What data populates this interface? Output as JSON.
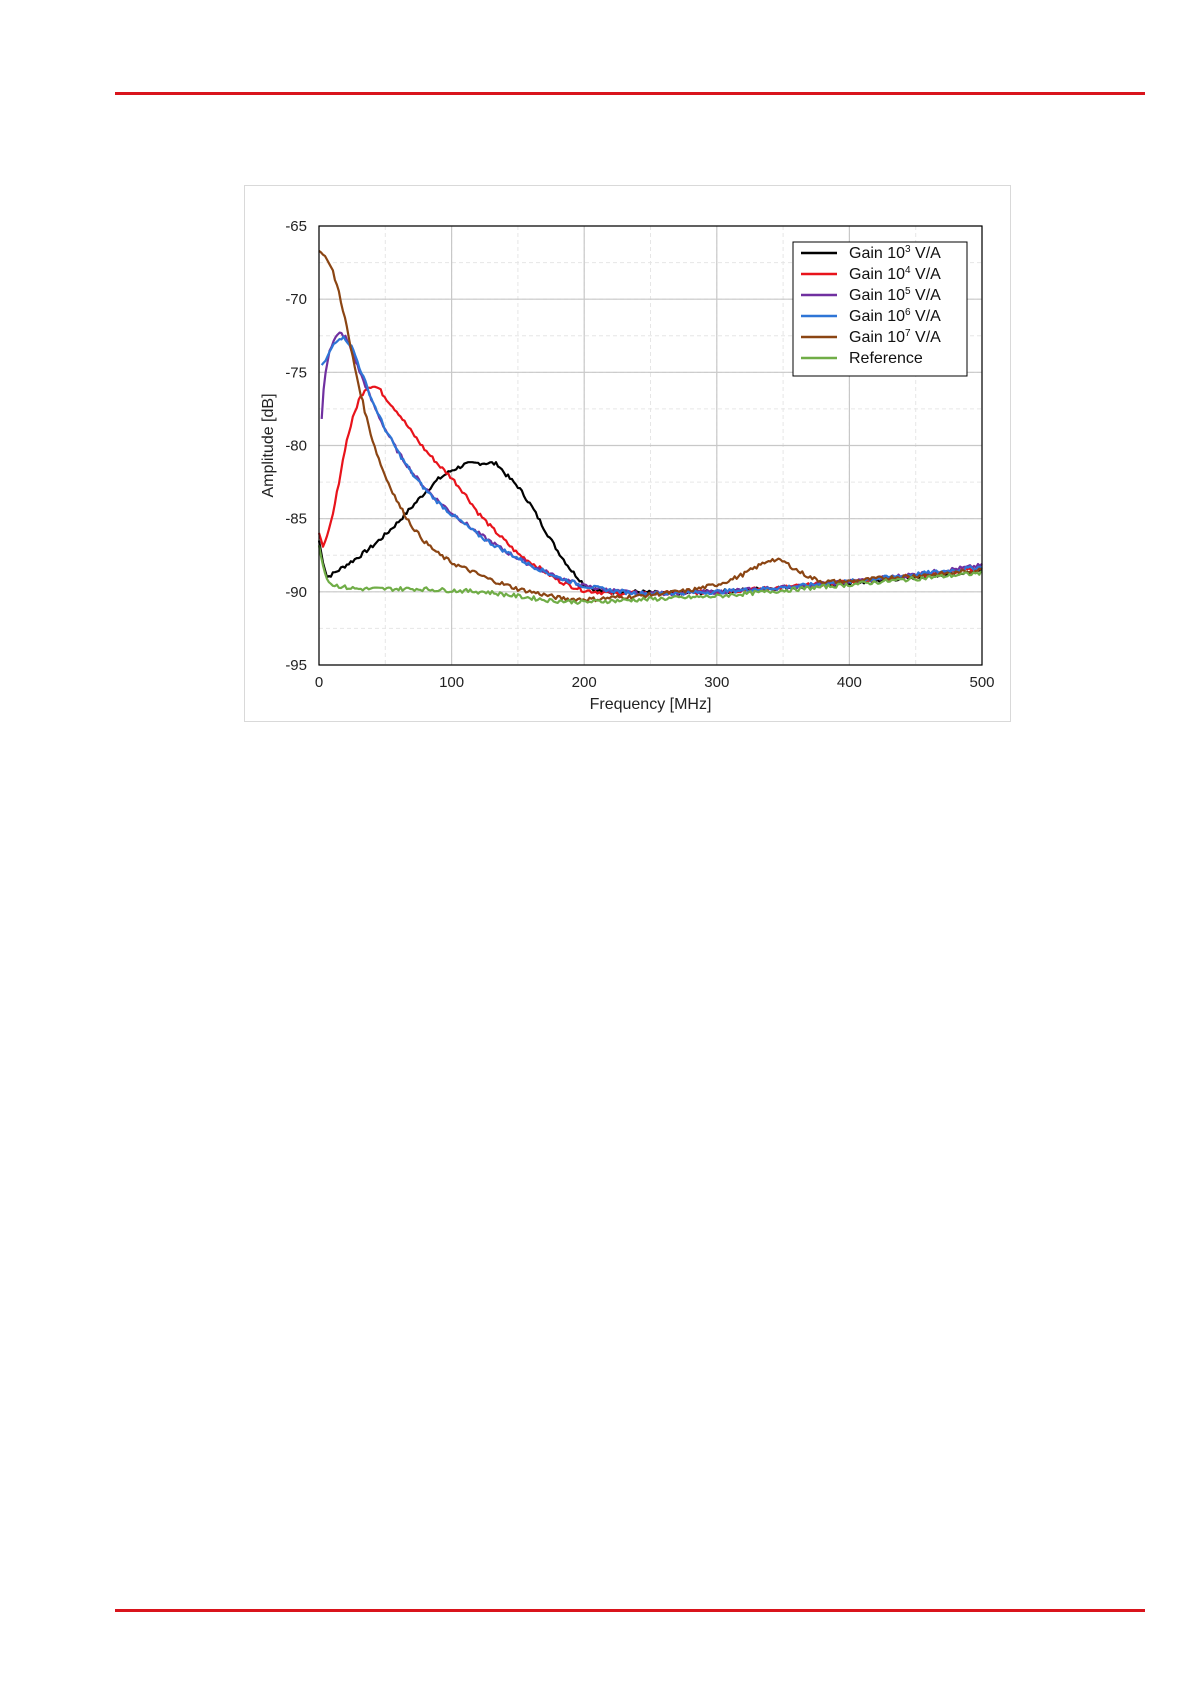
{
  "page": {
    "rule_color": "#d9141c"
  },
  "chart_data": {
    "type": "line",
    "xlabel": "Frequency [MHz]",
    "ylabel": "Amplitude [dB]",
    "xlim": [
      0,
      500
    ],
    "ylim": [
      -95,
      -65
    ],
    "xticks": [
      0,
      100,
      200,
      300,
      400,
      500
    ],
    "yticks": [
      -65,
      -70,
      -75,
      -80,
      -85,
      -90,
      -95
    ],
    "grid": true,
    "legend_position": "top-right",
    "series": [
      {
        "name": "Gain 10³ V/A",
        "legend": {
          "prefix": "Gain 10",
          "sup": "3",
          "suffix": " V/A"
        },
        "color": "#000000",
        "x": [
          0,
          3,
          6,
          10,
          15,
          20,
          30,
          40,
          50,
          60,
          70,
          80,
          90,
          100,
          110,
          120,
          130,
          135,
          140,
          150,
          160,
          170,
          180,
          190,
          200,
          210,
          220,
          230,
          240,
          260,
          300,
          350,
          400,
          450,
          500
        ],
        "y": [
          -86.5,
          -88.0,
          -89.0,
          -88.8,
          -88.5,
          -88.2,
          -87.6,
          -86.9,
          -86.1,
          -85.2,
          -84.2,
          -83.2,
          -82.3,
          -81.7,
          -81.3,
          -81.2,
          -81.2,
          -81.3,
          -81.9,
          -82.8,
          -84.1,
          -85.7,
          -87.2,
          -88.5,
          -89.5,
          -89.9,
          -90.0,
          -90.0,
          -90.0,
          -90.1,
          -90.0,
          -89.7,
          -89.4,
          -89.0,
          -88.5
        ]
      },
      {
        "name": "Gain 10⁴ V/A",
        "legend": {
          "prefix": "Gain 10",
          "sup": "4",
          "suffix": " V/A"
        },
        "color": "#e8131b",
        "x": [
          0,
          3,
          6,
          10,
          15,
          20,
          25,
          30,
          35,
          40,
          45,
          50,
          60,
          70,
          80,
          90,
          100,
          110,
          120,
          130,
          140,
          150,
          160,
          170,
          180,
          190,
          200,
          210,
          220,
          240,
          260,
          300,
          350,
          400,
          450,
          500
        ],
        "y": [
          -86.0,
          -86.9,
          -86.2,
          -85.0,
          -82.5,
          -80.0,
          -78.3,
          -76.9,
          -76.1,
          -75.9,
          -76.1,
          -76.7,
          -77.8,
          -79.1,
          -80.3,
          -81.3,
          -82.2,
          -83.3,
          -84.6,
          -85.6,
          -86.5,
          -87.4,
          -88.0,
          -88.6,
          -89.2,
          -89.6,
          -89.9,
          -90.0,
          -90.1,
          -90.1,
          -90.1,
          -90.0,
          -89.7,
          -89.3,
          -88.9,
          -88.4
        ]
      },
      {
        "name": "Gain 10⁵ V/A",
        "legend": {
          "prefix": "Gain 10",
          "sup": "5",
          "suffix": " V/A"
        },
        "color": "#7030a0",
        "x": [
          2,
          4,
          8,
          12,
          16,
          20,
          24,
          30,
          40,
          50,
          60,
          70,
          80,
          90,
          100,
          110,
          120,
          130,
          140,
          150,
          160,
          170,
          180,
          190,
          200,
          220,
          240,
          260,
          300,
          350,
          400,
          450,
          500
        ],
        "y": [
          -78.2,
          -75.5,
          -73.5,
          -72.7,
          -72.3,
          -72.6,
          -73.4,
          -74.8,
          -77.0,
          -78.9,
          -80.5,
          -81.8,
          -82.9,
          -83.8,
          -84.6,
          -85.3,
          -86.0,
          -86.6,
          -87.2,
          -87.7,
          -88.2,
          -88.6,
          -89.0,
          -89.3,
          -89.6,
          -89.9,
          -90.1,
          -90.1,
          -90.0,
          -89.7,
          -89.3,
          -88.8,
          -88.2
        ]
      },
      {
        "name": "Gain 10⁶ V/A",
        "legend": {
          "prefix": "Gain 10",
          "sup": "6",
          "suffix": " V/A"
        },
        "color": "#2e75d6",
        "x": [
          2,
          5,
          8,
          12,
          16,
          20,
          25,
          30,
          40,
          50,
          60,
          70,
          80,
          90,
          100,
          110,
          120,
          130,
          140,
          150,
          160,
          170,
          180,
          190,
          200,
          220,
          240,
          260,
          300,
          350,
          400,
          450,
          500
        ],
        "y": [
          -74.5,
          -74.2,
          -73.6,
          -72.9,
          -72.6,
          -72.7,
          -73.3,
          -74.5,
          -76.9,
          -78.9,
          -80.5,
          -81.9,
          -83.0,
          -83.9,
          -84.7,
          -85.4,
          -86.1,
          -86.7,
          -87.2,
          -87.7,
          -88.2,
          -88.6,
          -89.0,
          -89.3,
          -89.6,
          -89.9,
          -90.1,
          -90.1,
          -90.0,
          -89.7,
          -89.3,
          -88.8,
          -88.3
        ]
      },
      {
        "name": "Gain 10⁷ V/A",
        "legend": {
          "prefix": "Gain 10",
          "sup": "7",
          "suffix": " V/A"
        },
        "color": "#8b4513",
        "x": [
          0,
          5,
          10,
          15,
          20,
          25,
          30,
          35,
          40,
          45,
          50,
          60,
          70,
          80,
          90,
          100,
          110,
          120,
          130,
          140,
          150,
          160,
          170,
          180,
          190,
          200,
          210,
          220,
          240,
          260,
          280,
          300,
          310,
          320,
          330,
          340,
          350,
          360,
          370,
          380,
          400,
          420,
          450,
          480,
          500
        ],
        "y": [
          -66.7,
          -67.1,
          -68.0,
          -69.5,
          -71.5,
          -73.8,
          -75.9,
          -77.8,
          -79.5,
          -80.9,
          -82.1,
          -84.0,
          -85.5,
          -86.6,
          -87.4,
          -88.0,
          -88.4,
          -88.8,
          -89.2,
          -89.5,
          -89.8,
          -90.0,
          -90.2,
          -90.4,
          -90.5,
          -90.5,
          -90.5,
          -90.4,
          -90.3,
          -90.1,
          -89.9,
          -89.5,
          -89.2,
          -88.8,
          -88.3,
          -87.8,
          -87.9,
          -88.5,
          -89.0,
          -89.3,
          -89.3,
          -89.1,
          -88.9,
          -88.7,
          -88.5
        ]
      },
      {
        "name": "Reference",
        "legend": {
          "prefix": "Reference",
          "sup": "",
          "suffix": ""
        },
        "color": "#70ad47",
        "x": [
          0,
          2,
          4,
          6,
          8,
          10,
          15,
          20,
          30,
          50,
          75,
          100,
          125,
          150,
          175,
          200,
          225,
          250,
          275,
          300,
          350,
          400,
          450,
          500
        ],
        "y": [
          -86.8,
          -87.8,
          -88.6,
          -89.1,
          -89.4,
          -89.5,
          -89.6,
          -89.7,
          -89.8,
          -89.8,
          -89.8,
          -89.9,
          -90.0,
          -90.3,
          -90.6,
          -90.7,
          -90.6,
          -90.5,
          -90.4,
          -90.3,
          -89.9,
          -89.5,
          -89.1,
          -88.7
        ]
      }
    ]
  }
}
